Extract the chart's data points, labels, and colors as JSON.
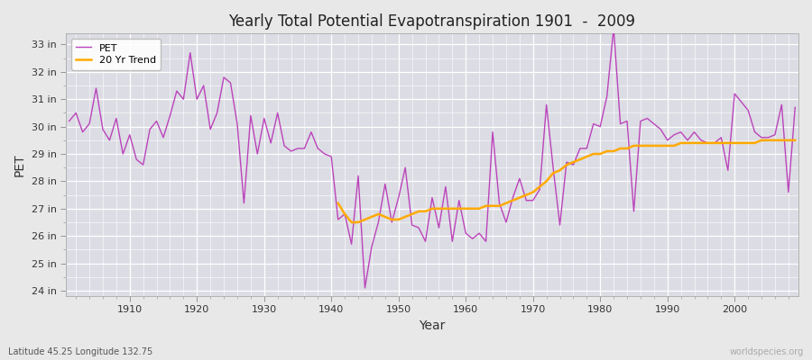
{
  "title": "Yearly Total Potential Evapotranspiration 1901  -  2009",
  "xlabel": "Year",
  "ylabel": "PET",
  "footnote_left": "Latitude 45.25 Longitude 132.75",
  "footnote_right": "worldspecies.org",
  "pet_color": "#bb44bb",
  "trend_color": "#ffaa00",
  "fig_facecolor": "#e8e8e8",
  "plot_bg_color": "#dcdce4",
  "grid_color": "#ffffff",
  "ylim_min": 23.8,
  "ylim_max": 33.4,
  "xlim_min": 1900.5,
  "xlim_max": 2009.5,
  "yticks": [
    24,
    25,
    26,
    27,
    28,
    29,
    30,
    31,
    32,
    33
  ],
  "ytick_labels": [
    "24 in",
    "25 in",
    "26 in",
    "27 in",
    "28 in",
    "29 in",
    "30 in",
    "31 in",
    "32 in",
    "33 in"
  ],
  "xticks": [
    1910,
    1920,
    1930,
    1940,
    1950,
    1960,
    1970,
    1980,
    1990,
    2000
  ],
  "years": [
    1901,
    1902,
    1903,
    1904,
    1905,
    1906,
    1907,
    1908,
    1909,
    1910,
    1911,
    1912,
    1913,
    1914,
    1915,
    1916,
    1917,
    1918,
    1919,
    1920,
    1921,
    1922,
    1923,
    1924,
    1925,
    1926,
    1927,
    1928,
    1929,
    1930,
    1931,
    1932,
    1933,
    1934,
    1935,
    1936,
    1937,
    1938,
    1939,
    1940,
    1941,
    1942,
    1943,
    1944,
    1945,
    1946,
    1947,
    1948,
    1949,
    1950,
    1951,
    1952,
    1953,
    1954,
    1955,
    1956,
    1957,
    1958,
    1959,
    1960,
    1961,
    1962,
    1963,
    1964,
    1965,
    1966,
    1967,
    1968,
    1969,
    1970,
    1971,
    1972,
    1973,
    1974,
    1975,
    1976,
    1977,
    1978,
    1979,
    1980,
    1981,
    1982,
    1983,
    1984,
    1985,
    1986,
    1987,
    1988,
    1989,
    1990,
    1991,
    1992,
    1993,
    1994,
    1995,
    1996,
    1997,
    1998,
    1999,
    2000,
    2001,
    2002,
    2003,
    2004,
    2005,
    2006,
    2007,
    2008,
    2009
  ],
  "pet_values": [
    30.2,
    30.5,
    29.8,
    30.1,
    31.4,
    29.9,
    29.5,
    30.3,
    29.0,
    29.7,
    28.8,
    28.6,
    29.9,
    30.2,
    29.6,
    30.4,
    31.3,
    31.0,
    32.7,
    31.0,
    31.5,
    29.9,
    30.5,
    31.8,
    31.6,
    30.1,
    27.2,
    30.4,
    29.0,
    30.3,
    29.4,
    30.5,
    29.3,
    29.1,
    29.2,
    29.2,
    29.8,
    29.2,
    29.0,
    28.9,
    26.6,
    26.8,
    25.7,
    28.2,
    24.1,
    25.6,
    26.5,
    27.9,
    26.5,
    27.4,
    28.5,
    26.4,
    26.3,
    25.8,
    27.4,
    26.3,
    27.8,
    25.8,
    27.3,
    26.1,
    25.9,
    26.1,
    25.8,
    29.8,
    27.2,
    26.5,
    27.4,
    28.1,
    27.3,
    27.3,
    27.7,
    30.8,
    28.5,
    26.4,
    28.7,
    28.6,
    29.2,
    29.2,
    30.1,
    30.0,
    31.1,
    33.6,
    30.1,
    30.2,
    26.9,
    30.2,
    30.3,
    30.1,
    29.9,
    29.5,
    29.7,
    29.8,
    29.5,
    29.8,
    29.5,
    29.4,
    29.4,
    29.6,
    28.4,
    31.2,
    30.9,
    30.6,
    29.8,
    29.6,
    29.6,
    29.7,
    30.8,
    27.6,
    30.7
  ],
  "trend_start_year": 1941,
  "trend_values": [
    27.2,
    26.8,
    26.5,
    26.5,
    26.6,
    26.7,
    26.8,
    26.7,
    26.6,
    26.6,
    26.7,
    26.8,
    26.9,
    26.9,
    27.0,
    27.0,
    27.0,
    27.0,
    27.0,
    27.0,
    27.0,
    27.0,
    27.1,
    27.1,
    27.1,
    27.2,
    27.3,
    27.4,
    27.5,
    27.6,
    27.8,
    28.0,
    28.3,
    28.4,
    28.6,
    28.7,
    28.8,
    28.9,
    29.0,
    29.0,
    29.1,
    29.1,
    29.2,
    29.2,
    29.3,
    29.3,
    29.3,
    29.3,
    29.3,
    29.3,
    29.3,
    29.4,
    29.4,
    29.4,
    29.4,
    29.4,
    29.4,
    29.4,
    29.4,
    29.4,
    29.4,
    29.4,
    29.4,
    29.5,
    29.5,
    29.5,
    29.5,
    29.5,
    29.5
  ]
}
